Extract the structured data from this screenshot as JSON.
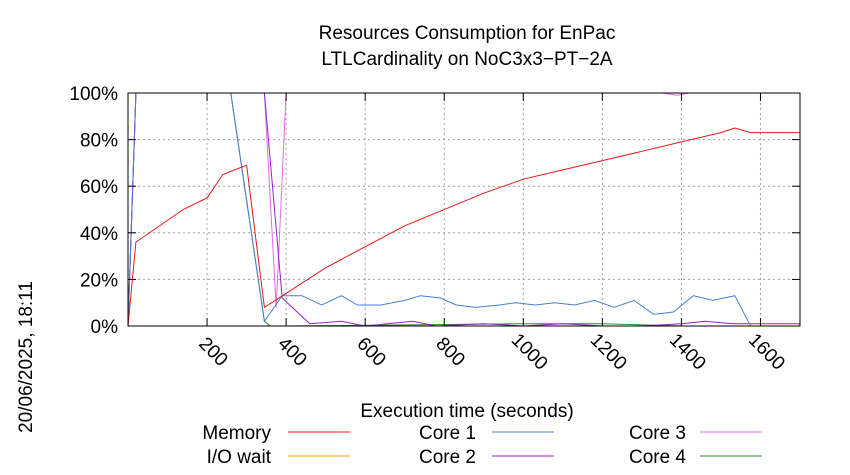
{
  "chart_data": {
    "type": "line",
    "title": [
      "Resources Consumption for EnPac",
      "LTLCardinality on NoC3x3−PT−2A"
    ],
    "xlabel": "Execution time (seconds)",
    "ylabel": "",
    "side_label": "20/06/2025, 18:11",
    "xlim": [
      0,
      1700
    ],
    "ylim": [
      0,
      100
    ],
    "x_ticks": [
      200,
      400,
      600,
      800,
      1000,
      1200,
      1400,
      1600
    ],
    "y_ticks": [
      0,
      20,
      40,
      60,
      80,
      100
    ],
    "y_tick_labels": [
      "0%",
      "20%",
      "40%",
      "60%",
      "80%",
      "100%"
    ],
    "grid": true,
    "legend_position": "bottom",
    "series": [
      {
        "name": "Memory",
        "color": "#e8191b",
        "x": [
          0,
          20,
          140,
          200,
          240,
          300,
          345,
          500,
          700,
          900,
          1000,
          1100,
          1200,
          1300,
          1400,
          1500,
          1535,
          1575,
          1700
        ],
        "y": [
          0,
          36,
          50,
          55,
          65,
          69,
          8,
          25,
          43,
          57,
          63,
          67,
          71,
          75,
          79,
          83,
          85,
          83,
          83
        ]
      },
      {
        "name": "I/O wait",
        "color": "#f2a900",
        "x": [
          0,
          1700
        ],
        "y": [
          0,
          0
        ]
      },
      {
        "name": "Core 1",
        "color": "#4a7fd1",
        "x": [
          0,
          20,
          260,
          345,
          390,
          440,
          490,
          540,
          580,
          640,
          700,
          740,
          790,
          830,
          880,
          940,
          980,
          1030,
          1080,
          1130,
          1180,
          1230,
          1280,
          1330,
          1380,
          1430,
          1480,
          1535,
          1575,
          1700
        ],
        "y": [
          0,
          100,
          100,
          2,
          13,
          13,
          9,
          13,
          9,
          9,
          11,
          13,
          12,
          9,
          8,
          9,
          10,
          9,
          10,
          9,
          11,
          8,
          11,
          5,
          6,
          13,
          11,
          13,
          0,
          0
        ]
      },
      {
        "name": "Core 2",
        "color": "#9a1fd4",
        "x": [
          0,
          20,
          260,
          345,
          390,
          460,
          540,
          600,
          720,
          780,
          900,
          1000,
          1100,
          1200,
          1300,
          1400,
          1460,
          1530,
          1700
        ],
        "y": [
          0,
          100,
          100,
          100,
          12,
          1,
          2,
          0,
          2,
          0,
          1,
          0,
          1,
          0,
          0,
          1,
          2,
          1,
          1
        ]
      },
      {
        "name": "Core 3",
        "color": "#e66be6",
        "x": [
          0,
          20,
          345,
          375,
          400,
          1350,
          1390,
          1420,
          1700
        ],
        "y": [
          0,
          100,
          100,
          8,
          100,
          100,
          99,
          100,
          100
        ]
      },
      {
        "name": "Core 4",
        "color": "#2e8b2e",
        "x": [
          0,
          20,
          260,
          345,
          360,
          400,
          1000,
          1200,
          1400,
          1700
        ],
        "y": [
          0,
          100,
          100,
          2,
          0,
          0,
          1,
          1,
          0,
          0
        ]
      }
    ]
  }
}
